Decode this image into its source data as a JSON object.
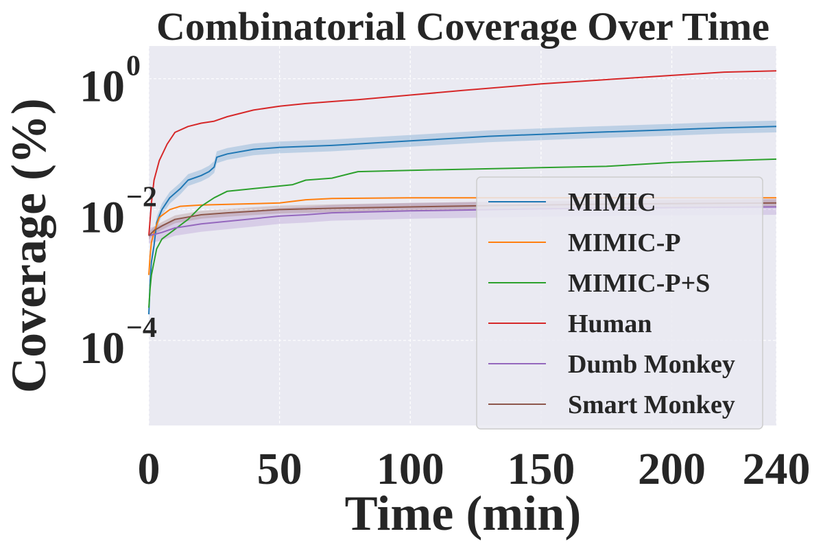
{
  "chart_data": {
    "type": "line",
    "title": "Combinatorial Coverage Over Time",
    "xlabel": "Time (min)",
    "ylabel": "Coverage (%)",
    "xlim": [
      0,
      240
    ],
    "ylim_log10": [
      -5.3,
      0.5
    ],
    "y_scale": "log",
    "grid": true,
    "legend_position": "lower-right",
    "x_ticks": [
      {
        "value": 0,
        "label": "0"
      },
      {
        "value": 50,
        "label": "50"
      },
      {
        "value": 100,
        "label": "100"
      },
      {
        "value": 150,
        "label": "150"
      },
      {
        "value": 200,
        "label": "200"
      },
      {
        "value": 240,
        "label": "240"
      }
    ],
    "y_ticks": [
      {
        "exp": 0,
        "base": "10",
        "sup": "0"
      },
      {
        "exp": -2,
        "base": "10",
        "sup": "−2"
      },
      {
        "exp": -4,
        "base": "10",
        "sup": "−4"
      }
    ],
    "series": [
      {
        "name": "MIMIC",
        "color": "#1f77b4",
        "log10_values": [
          [
            0,
            -3.6
          ],
          [
            0.5,
            -3.1
          ],
          [
            1,
            -2.8
          ],
          [
            2,
            -2.55
          ],
          [
            3,
            -2.2
          ],
          [
            5,
            -2.0
          ],
          [
            8,
            -1.82
          ],
          [
            12,
            -1.68
          ],
          [
            15,
            -1.55
          ],
          [
            20,
            -1.48
          ],
          [
            23,
            -1.42
          ],
          [
            25,
            -1.35
          ],
          [
            26,
            -1.2
          ],
          [
            30,
            -1.15
          ],
          [
            40,
            -1.08
          ],
          [
            50,
            -1.05
          ],
          [
            70,
            -1.02
          ],
          [
            100,
            -0.95
          ],
          [
            130,
            -0.88
          ],
          [
            150,
            -0.85
          ],
          [
            170,
            -0.82
          ],
          [
            200,
            -0.78
          ],
          [
            220,
            -0.75
          ],
          [
            240,
            -0.73
          ]
        ],
        "band": 0.09
      },
      {
        "name": "MIMIC-P",
        "color": "#ff7f0e",
        "log10_values": [
          [
            0,
            -3.0
          ],
          [
            0.5,
            -2.7
          ],
          [
            1,
            -2.5
          ],
          [
            2,
            -2.35
          ],
          [
            4,
            -2.12
          ],
          [
            8,
            -2.0
          ],
          [
            12,
            -1.95
          ],
          [
            20,
            -1.93
          ],
          [
            50,
            -1.9
          ],
          [
            60,
            -1.85
          ],
          [
            70,
            -1.83
          ],
          [
            100,
            -1.82
          ],
          [
            200,
            -1.82
          ],
          [
            240,
            -1.82
          ]
        ]
      },
      {
        "name": "MIMIC-P+S",
        "color": "#2ca02c",
        "log10_values": [
          [
            0,
            -3.5
          ],
          [
            0.5,
            -3.2
          ],
          [
            1,
            -3.0
          ],
          [
            3,
            -2.6
          ],
          [
            5,
            -2.45
          ],
          [
            10,
            -2.3
          ],
          [
            15,
            -2.15
          ],
          [
            20,
            -1.95
          ],
          [
            25,
            -1.82
          ],
          [
            30,
            -1.72
          ],
          [
            40,
            -1.68
          ],
          [
            55,
            -1.62
          ],
          [
            60,
            -1.55
          ],
          [
            70,
            -1.52
          ],
          [
            80,
            -1.42
          ],
          [
            100,
            -1.4
          ],
          [
            150,
            -1.36
          ],
          [
            175,
            -1.34
          ],
          [
            200,
            -1.28
          ],
          [
            240,
            -1.23
          ]
        ]
      },
      {
        "name": "Human",
        "color": "#d62728",
        "log10_values": [
          [
            0,
            -2.4
          ],
          [
            1,
            -1.9
          ],
          [
            2,
            -1.55
          ],
          [
            4,
            -1.25
          ],
          [
            7,
            -1.0
          ],
          [
            10,
            -0.82
          ],
          [
            15,
            -0.73
          ],
          [
            20,
            -0.68
          ],
          [
            25,
            -0.65
          ],
          [
            30,
            -0.58
          ],
          [
            40,
            -0.48
          ],
          [
            50,
            -0.42
          ],
          [
            60,
            -0.38
          ],
          [
            80,
            -0.32
          ],
          [
            100,
            -0.25
          ],
          [
            120,
            -0.18
          ],
          [
            150,
            -0.08
          ],
          [
            180,
            0.0
          ],
          [
            200,
            0.05
          ],
          [
            220,
            0.1
          ],
          [
            240,
            0.12
          ]
        ]
      },
      {
        "name": "Dumb Monkey",
        "color": "#9467bd",
        "log10_values": [
          [
            0,
            -2.4
          ],
          [
            2,
            -2.38
          ],
          [
            5,
            -2.35
          ],
          [
            10,
            -2.28
          ],
          [
            15,
            -2.25
          ],
          [
            20,
            -2.22
          ],
          [
            30,
            -2.18
          ],
          [
            40,
            -2.14
          ],
          [
            50,
            -2.1
          ],
          [
            60,
            -2.08
          ],
          [
            70,
            -2.05
          ],
          [
            100,
            -2.02
          ],
          [
            150,
            -1.99
          ],
          [
            200,
            -1.97
          ],
          [
            240,
            -1.96
          ]
        ],
        "band": 0.12
      },
      {
        "name": "Smart Monkey",
        "color": "#8c564b",
        "log10_values": [
          [
            0,
            -2.4
          ],
          [
            2,
            -2.32
          ],
          [
            5,
            -2.25
          ],
          [
            10,
            -2.15
          ],
          [
            20,
            -2.08
          ],
          [
            30,
            -2.05
          ],
          [
            50,
            -2.0
          ],
          [
            70,
            -1.98
          ],
          [
            100,
            -1.96
          ],
          [
            130,
            -1.94
          ],
          [
            170,
            -1.92
          ],
          [
            200,
            -1.91
          ],
          [
            240,
            -1.9
          ]
        ],
        "band": 0.06
      }
    ]
  }
}
